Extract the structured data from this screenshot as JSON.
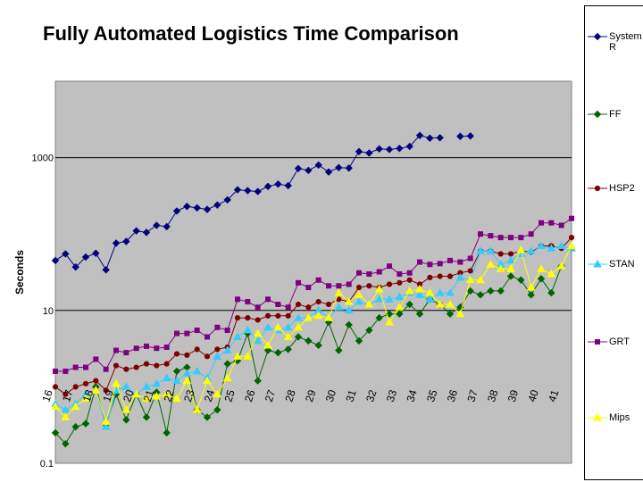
{
  "chart_data": {
    "type": "line",
    "title": "Fully Automated Logistics Time Comparison",
    "xlabel": "",
    "ylabel": "Seconds",
    "yscale": "log",
    "ylim": [
      0.1,
      10000
    ],
    "yticks": [
      {
        "value": 0.1,
        "label": "0.1"
      },
      {
        "value": 10,
        "label": "10"
      },
      {
        "value": 1000,
        "label": "1000"
      }
    ],
    "grid": "horizontal major at labeled ticks",
    "legend": "right",
    "plot_background": "#c0c0c0",
    "x": [
      16,
      16.5,
      17,
      17.5,
      18,
      18.5,
      19,
      19.5,
      20,
      20.5,
      21,
      21.5,
      22,
      22.5,
      23,
      23.5,
      24,
      24.5,
      25,
      25.5,
      26,
      26.5,
      27,
      27.5,
      28,
      28.5,
      29,
      29.5,
      30,
      30.5,
      31,
      31.5,
      32,
      32.5,
      33,
      33.5,
      34,
      34.5,
      35,
      35.5,
      36,
      36.5,
      37,
      37.5,
      38,
      38.5,
      39,
      39.5,
      40,
      40.5,
      41,
      41.5
    ],
    "xtick_labels": [
      "16",
      "17",
      "18",
      "19",
      "20",
      "21",
      "22",
      "23",
      "24",
      "25",
      "26",
      "27",
      "28",
      "29",
      "30",
      "31",
      "32",
      "33",
      "34",
      "35",
      "36",
      "37",
      "38",
      "39",
      "40",
      "41"
    ],
    "series": [
      {
        "name": "System R",
        "color": "#000080",
        "marker": "diamond",
        "values": [
          45,
          55,
          37,
          50,
          56,
          34,
          76,
          80,
          110,
          105,
          130,
          125,
          200,
          230,
          220,
          210,
          240,
          280,
          380,
          370,
          360,
          420,
          450,
          430,
          720,
          680,
          800,
          650,
          740,
          730,
          1200,
          1150,
          1300,
          1280,
          1320,
          1400,
          1950,
          1800,
          1820,
          null,
          1900,
          1920,
          null,
          null,
          null,
          null,
          null,
          null,
          null,
          null,
          null,
          null
        ]
      },
      {
        "name": "FF",
        "color": "#006400",
        "marker": "diamond",
        "values": [
          0.25,
          0.18,
          0.3,
          0.33,
          1.0,
          0.32,
          0.8,
          0.37,
          0.8,
          0.4,
          0.85,
          0.25,
          1.6,
          1.8,
          0.5,
          0.4,
          0.5,
          2.0,
          2.2,
          5.0,
          1.2,
          3.0,
          2.8,
          3.1,
          4.5,
          4.0,
          3.5,
          7.0,
          3.0,
          6.5,
          4.0,
          5.5,
          8.0,
          9.0,
          9.0,
          12.0,
          9.0,
          14.0,
          12.0,
          9.0,
          11.0,
          18.0,
          16.0,
          18.0,
          18.0,
          28.0,
          25.0,
          16.0,
          26.0,
          17.0,
          38.0,
          null
        ]
      },
      {
        "name": "HSP2",
        "color": "#800000",
        "marker": "circle",
        "values": [
          1.0,
          0.8,
          1.0,
          1.1,
          1.2,
          0.9,
          1.9,
          1.7,
          1.8,
          2.0,
          1.9,
          2.0,
          2.7,
          2.6,
          3.1,
          2.5,
          3.1,
          3.3,
          8.0,
          8.0,
          7.5,
          8.5,
          8.5,
          8.5,
          12.0,
          11.0,
          13.0,
          12.0,
          14.0,
          13.0,
          20.0,
          21.0,
          20.0,
          22.0,
          23.0,
          25.0,
          22.0,
          27.0,
          28.0,
          28.0,
          31.0,
          33.0,
          60.0,
          60.0,
          55.0,
          55.0,
          60.0,
          58.0,
          70.0,
          70.0,
          65.0,
          90.0
        ]
      },
      {
        "name": "STAN",
        "color": "#33ccff",
        "marker": "triangle",
        "values": [
          0.6,
          0.5,
          0.6,
          0.8,
          0.9,
          0.3,
          0.9,
          1.0,
          0.8,
          1.0,
          1.1,
          1.3,
          1.2,
          1.5,
          1.6,
          1.3,
          2.5,
          3.0,
          4.5,
          5.5,
          4.0,
          6.0,
          5.5,
          6.0,
          8.0,
          8.0,
          10.0,
          8.0,
          11.0,
          10.0,
          13.0,
          12.0,
          14.0,
          14.0,
          15.0,
          17.0,
          16.0,
          14.0,
          17.0,
          17.0,
          27.0,
          25.0,
          60.0,
          60.0,
          40.0,
          45.0,
          55.0,
          60.0,
          70.0,
          65.0,
          70.0,
          65.0
        ]
      },
      {
        "name": "GRT",
        "color": "#800080",
        "marker": "square",
        "values": [
          1.6,
          1.6,
          1.8,
          1.8,
          2.3,
          1.7,
          3.0,
          2.8,
          3.2,
          3.4,
          3.2,
          3.3,
          5.0,
          5.0,
          5.5,
          4.5,
          6.0,
          5.5,
          14.0,
          13.0,
          11.0,
          14.0,
          12.0,
          11.0,
          23.0,
          20.0,
          25.0,
          21.0,
          21.0,
          22.0,
          31.0,
          30.0,
          32.0,
          38.0,
          30.0,
          31.0,
          43.0,
          40.0,
          41.0,
          45.0,
          43.0,
          48.0,
          100.0,
          95.0,
          90.0,
          90.0,
          90.0,
          100.0,
          140.0,
          140.0,
          130.0,
          160.0
        ]
      },
      {
        "name": "Mips",
        "color": "#ffff00",
        "marker": "triangle",
        "values": [
          0.55,
          0.4,
          0.55,
          0.7,
          0.9,
          0.35,
          1.1,
          0.5,
          0.8,
          0.7,
          0.75,
          0.8,
          0.7,
          1.2,
          0.5,
          1.2,
          0.8,
          1.3,
          2.5,
          2.5,
          5.0,
          3.5,
          6.0,
          4.5,
          6.0,
          8.0,
          8.5,
          8.0,
          17.0,
          13.0,
          16.0,
          12.0,
          19.0,
          7.0,
          11.0,
          18.0,
          19.0,
          17.0,
          12.0,
          12.0,
          9.0,
          25.0,
          25.0,
          40.0,
          35.0,
          35.0,
          62.0,
          20.0,
          35.0,
          30.0,
          38.0,
          70.0
        ]
      }
    ]
  }
}
